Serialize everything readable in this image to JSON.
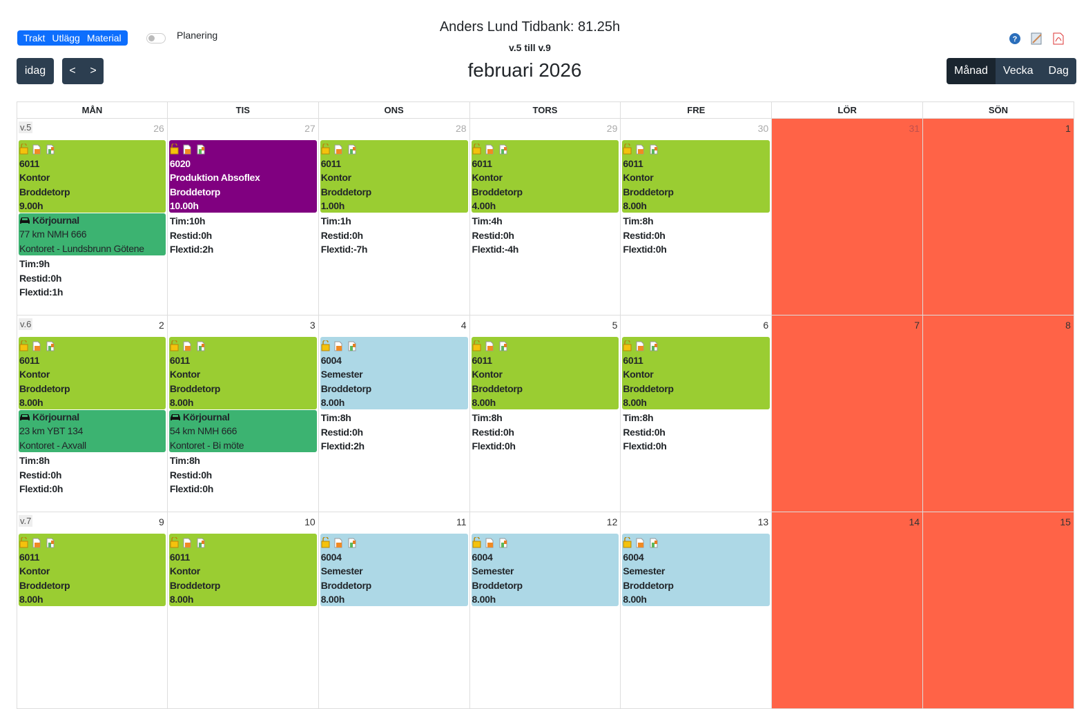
{
  "header": {
    "title": "Anders Lund Tidbank: 81.25h",
    "weeks": "v.5 till v.9",
    "month": "februari 2026"
  },
  "toolbar": {
    "tabs": [
      "Trakt",
      "Utlägg",
      "Material"
    ],
    "toggle_label": "Planering",
    "today": "idag",
    "prev": "<",
    "next": ">",
    "views": [
      "Månad",
      "Vecka",
      "Dag"
    ],
    "active_view": 0
  },
  "calendar": {
    "day_names": [
      "MÅN",
      "TIS",
      "ONS",
      "TORS",
      "FRE",
      "LÖR",
      "SÖN"
    ],
    "weeks": [
      {
        "label": "v.5",
        "days": [
          {
            "date": "26",
            "muted": true,
            "events": [
              {
                "kind": "work",
                "color": "#9acd32",
                "lines": [
                  "6011",
                  "Kontor",
                  "Broddetorp",
                  "9.00h"
                ]
              },
              {
                "kind": "drive",
                "color": "#3cb371",
                "title": "Körjournal",
                "lines": [
                  "77 km NMH 666",
                  "Kontoret - Lundsbrunn Götene"
                ]
              }
            ],
            "summary": [
              "Tim:9h",
              "Restid:0h",
              "Flextid:1h"
            ]
          },
          {
            "date": "27",
            "muted": true,
            "events": [
              {
                "kind": "work",
                "color": "#800080",
                "text_color": "#ffffff",
                "lines": [
                  "6020",
                  "Produktion Absoflex",
                  "Broddetorp",
                  "10.00h"
                ]
              }
            ],
            "summary": [
              "Tim:10h",
              "Restid:0h",
              "Flextid:2h"
            ]
          },
          {
            "date": "28",
            "muted": true,
            "events": [
              {
                "kind": "work",
                "color": "#9acd32",
                "lines": [
                  "6011",
                  "Kontor",
                  "Broddetorp",
                  "1.00h"
                ]
              }
            ],
            "summary": [
              "Tim:1h",
              "Restid:0h",
              "Flextid:-7h"
            ]
          },
          {
            "date": "29",
            "muted": true,
            "events": [
              {
                "kind": "work",
                "color": "#9acd32",
                "lines": [
                  "6011",
                  "Kontor",
                  "Broddetorp",
                  "4.00h"
                ]
              }
            ],
            "summary": [
              "Tim:4h",
              "Restid:0h",
              "Flextid:-4h"
            ]
          },
          {
            "date": "30",
            "muted": true,
            "events": [
              {
                "kind": "work",
                "color": "#9acd32",
                "lines": [
                  "6011",
                  "Kontor",
                  "Broddetorp",
                  "8.00h"
                ]
              }
            ],
            "summary": [
              "Tim:8h",
              "Restid:0h",
              "Flextid:0h"
            ]
          },
          {
            "date": "31",
            "muted": true,
            "events": [],
            "summary": []
          },
          {
            "date": "1",
            "events": [],
            "summary": []
          }
        ]
      },
      {
        "label": "v.6",
        "days": [
          {
            "date": "2",
            "events": [
              {
                "kind": "work",
                "color": "#9acd32",
                "lines": [
                  "6011",
                  "Kontor",
                  "Broddetorp",
                  "8.00h"
                ]
              },
              {
                "kind": "drive",
                "color": "#3cb371",
                "title": "Körjournal",
                "lines": [
                  "23 km YBT 134",
                  "Kontoret - Axvall"
                ]
              }
            ],
            "summary": [
              "Tim:8h",
              "Restid:0h",
              "Flextid:0h"
            ]
          },
          {
            "date": "3",
            "events": [
              {
                "kind": "work",
                "color": "#9acd32",
                "lines": [
                  "6011",
                  "Kontor",
                  "Broddetorp",
                  "8.00h"
                ]
              },
              {
                "kind": "drive",
                "color": "#3cb371",
                "title": "Körjournal",
                "lines": [
                  "54 km NMH 666",
                  "Kontoret - Bi möte"
                ]
              }
            ],
            "summary": [
              "Tim:8h",
              "Restid:0h",
              "Flextid:0h"
            ]
          },
          {
            "date": "4",
            "events": [
              {
                "kind": "work",
                "color": "#add8e6",
                "lines": [
                  "6004",
                  "Semester",
                  "Broddetorp",
                  "8.00h"
                ]
              }
            ],
            "summary": [
              "Tim:8h",
              "Restid:0h",
              "Flextid:2h"
            ]
          },
          {
            "date": "5",
            "events": [
              {
                "kind": "work",
                "color": "#9acd32",
                "lines": [
                  "6011",
                  "Kontor",
                  "Broddetorp",
                  "8.00h"
                ]
              }
            ],
            "summary": [
              "Tim:8h",
              "Restid:0h",
              "Flextid:0h"
            ]
          },
          {
            "date": "6",
            "events": [
              {
                "kind": "work",
                "color": "#9acd32",
                "lines": [
                  "6011",
                  "Kontor",
                  "Broddetorp",
                  "8.00h"
                ]
              }
            ],
            "summary": [
              "Tim:8h",
              "Restid:0h",
              "Flextid:0h"
            ]
          },
          {
            "date": "7",
            "events": [],
            "summary": []
          },
          {
            "date": "8",
            "events": [],
            "summary": []
          }
        ]
      },
      {
        "label": "v.7",
        "days": [
          {
            "date": "9",
            "events": [
              {
                "kind": "work",
                "color": "#9acd32",
                "lines": [
                  "6011",
                  "Kontor",
                  "Broddetorp",
                  "8.00h"
                ]
              }
            ],
            "summary": []
          },
          {
            "date": "10",
            "events": [
              {
                "kind": "work",
                "color": "#9acd32",
                "lines": [
                  "6011",
                  "Kontor",
                  "Broddetorp",
                  "8.00h"
                ]
              }
            ],
            "summary": []
          },
          {
            "date": "11",
            "events": [
              {
                "kind": "work",
                "color": "#add8e6",
                "lines": [
                  "6004",
                  "Semester",
                  "Broddetorp",
                  "8.00h"
                ]
              }
            ],
            "summary": []
          },
          {
            "date": "12",
            "events": [
              {
                "kind": "work",
                "color": "#add8e6",
                "lines": [
                  "6004",
                  "Semester",
                  "Broddetorp",
                  "8.00h"
                ]
              }
            ],
            "summary": []
          },
          {
            "date": "13",
            "events": [
              {
                "kind": "work",
                "color": "#add8e6",
                "lines": [
                  "6004",
                  "Semester",
                  "Broddetorp",
                  "8.00h"
                ]
              }
            ],
            "summary": []
          },
          {
            "date": "14",
            "events": [],
            "summary": []
          },
          {
            "date": "15",
            "events": [],
            "summary": []
          }
        ]
      }
    ]
  }
}
